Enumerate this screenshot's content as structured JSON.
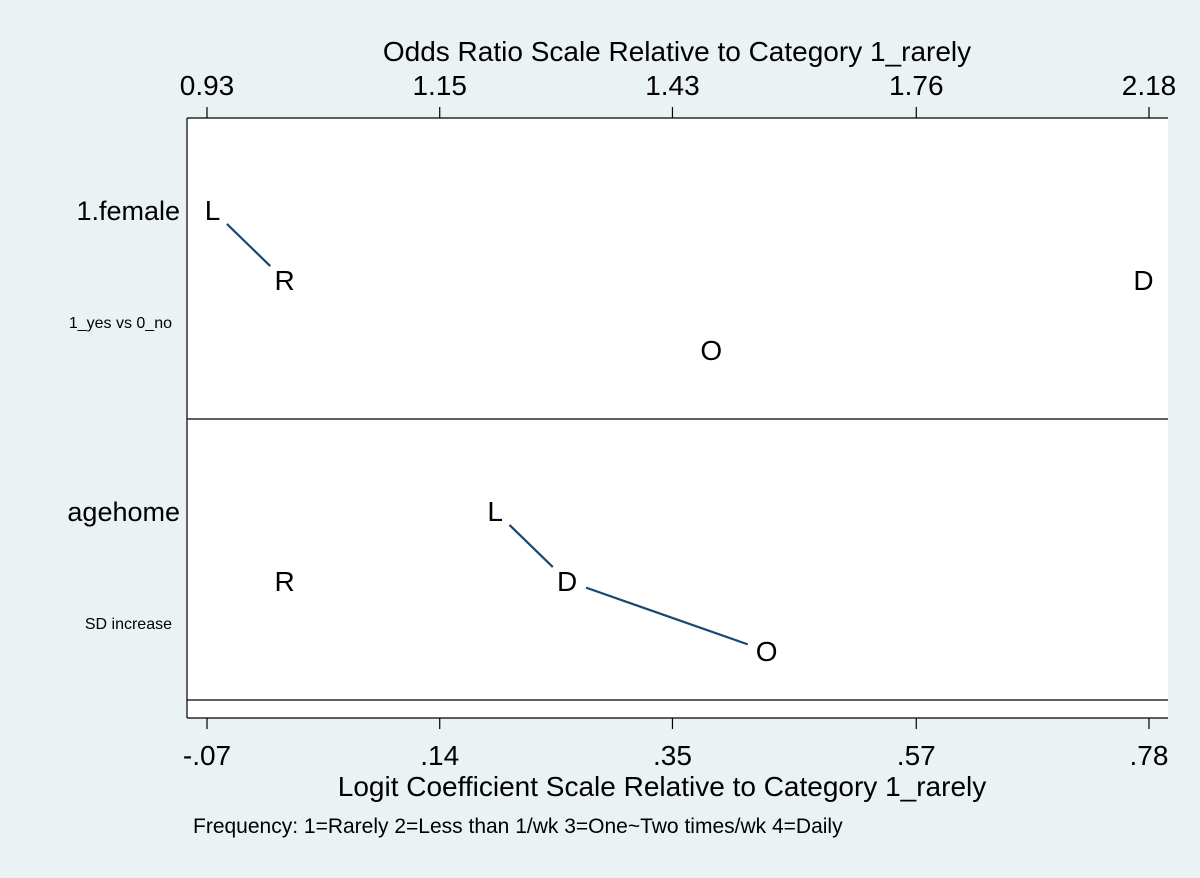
{
  "chart_data": {
    "type": "scatter",
    "subtype": "odds-ratio plot",
    "top_axis": {
      "title": "Odds Ratio Scale Relative to Category 1_rarely",
      "ticks": [
        "0.93",
        "1.15",
        "1.43",
        "1.76",
        "2.18"
      ]
    },
    "bottom_axis": {
      "title": "Logit Coefficient Scale Relative to Category 1_rarely",
      "ticks": [
        {
          "label": "-.07",
          "value": -0.07
        },
        {
          "label": ".14",
          "value": 0.14
        },
        {
          "label": ".35",
          "value": 0.35
        },
        {
          "label": ".57",
          "value": 0.57
        },
        {
          "label": ".78",
          "value": 0.78
        }
      ]
    },
    "xlim": [
      -0.09,
      0.8
    ],
    "note": "Frequency: 1=Rarely 2=Less than 1/wk 3=One~Two times/wk 4=Daily",
    "panels": [
      {
        "label": "1.female",
        "sublabel": "1_yes vs 0_no",
        "points": [
          {
            "letter": "L",
            "x": -0.065,
            "row": 0
          },
          {
            "letter": "R",
            "x": 0.0,
            "row": 1
          },
          {
            "letter": "D",
            "x": 0.775,
            "row": 1
          },
          {
            "letter": "O",
            "x": 0.385,
            "row": 2
          }
        ],
        "connections": [
          [
            "L",
            "R"
          ]
        ]
      },
      {
        "label": "agehome",
        "sublabel": "SD increase",
        "points": [
          {
            "letter": "L",
            "x": 0.19,
            "row": 0
          },
          {
            "letter": "R",
            "x": 0.0,
            "row": 1
          },
          {
            "letter": "D",
            "x": 0.255,
            "row": 1
          },
          {
            "letter": "O",
            "x": 0.435,
            "row": 2
          }
        ],
        "connections": [
          [
            "L",
            "D"
          ],
          [
            "D",
            "O"
          ]
        ]
      }
    ],
    "grid": false,
    "colors": {
      "background": "#eaf2f3",
      "plot_area": "#ffffff",
      "line": "#1a476f",
      "text": "#000000"
    }
  }
}
